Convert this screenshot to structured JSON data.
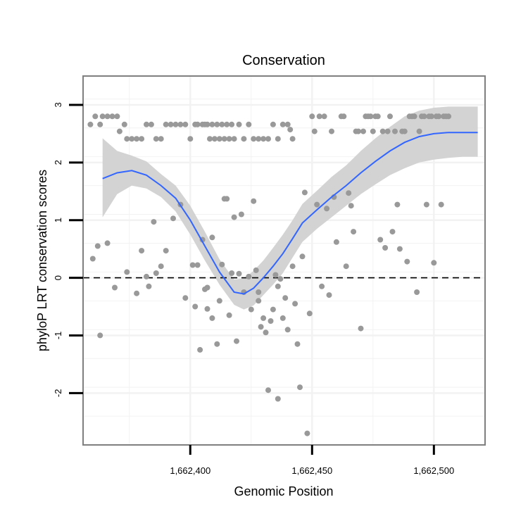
{
  "chart_data": {
    "type": "scatter",
    "title": "Conservation",
    "xlabel": "Genomic Position",
    "ylabel": "phyloP LRT conservation scores",
    "xlim": [
      1662356,
      1662521
    ],
    "ylim": [
      -2.9,
      3.5
    ],
    "x_ticks": [
      {
        "value": 1662400,
        "label": "1,662,400"
      },
      {
        "value": 1662450,
        "label": "1,662,450"
      },
      {
        "value": 1662500,
        "label": "1,662,500"
      }
    ],
    "y_ticks": [
      {
        "value": -2,
        "label": "-2"
      },
      {
        "value": -1,
        "label": "-1"
      },
      {
        "value": 0,
        "label": "0"
      },
      {
        "value": 1,
        "label": "1"
      },
      {
        "value": 2,
        "label": "2"
      },
      {
        "value": 3,
        "label": "3"
      }
    ],
    "grid": true,
    "reference_line": {
      "y": 0,
      "style": "dashed"
    },
    "colors": {
      "points": "#999999",
      "smooth_line": "#3366ff",
      "confidence_band": "#d3d3d3",
      "panel_border": "#7f7f7f",
      "grid": "#f2f2f2"
    },
    "points": [
      [
        1662363,
        2.66
      ],
      [
        1662364,
        2.8
      ],
      [
        1662366,
        2.8
      ],
      [
        1662368,
        2.8
      ],
      [
        1662370,
        2.8
      ],
      [
        1662371,
        2.54
      ],
      [
        1662373,
        2.66
      ],
      [
        1662374,
        2.41
      ],
      [
        1662376,
        2.41
      ],
      [
        1662378,
        2.41
      ],
      [
        1662380,
        2.41
      ],
      [
        1662382,
        2.66
      ],
      [
        1662384,
        2.66
      ],
      [
        1662386,
        2.41
      ],
      [
        1662388,
        2.41
      ],
      [
        1662390,
        2.66
      ],
      [
        1662392,
        2.66
      ],
      [
        1662394,
        2.66
      ],
      [
        1662396,
        2.66
      ],
      [
        1662398,
        2.66
      ],
      [
        1662400,
        2.41
      ],
      [
        1662402,
        2.66
      ],
      [
        1662403,
        2.66
      ],
      [
        1662405,
        2.66
      ],
      [
        1662407,
        2.66
      ],
      [
        1662409,
        2.66
      ],
      [
        1662411,
        2.66
      ],
      [
        1662413,
        2.66
      ],
      [
        1662415,
        2.66
      ],
      [
        1662417,
        2.66
      ],
      [
        1662418,
        2.41
      ],
      [
        1662420,
        2.66
      ],
      [
        1662422,
        2.41
      ],
      [
        1662424,
        2.66
      ],
      [
        1662426,
        2.41
      ],
      [
        1662428,
        2.41
      ],
      [
        1662430,
        2.41
      ],
      [
        1662432,
        2.41
      ],
      [
        1662434,
        2.66
      ],
      [
        1662436,
        2.41
      ],
      [
        1662438,
        2.66
      ],
      [
        1662440,
        2.66
      ],
      [
        1662442,
        2.41
      ],
      [
        1662406,
        2.66
      ],
      [
        1662408,
        2.41
      ],
      [
        1662410,
        2.41
      ],
      [
        1662412,
        2.41
      ],
      [
        1662414,
        2.41
      ],
      [
        1662416,
        2.41
      ],
      [
        1662359,
        2.66
      ],
      [
        1662361,
        2.8
      ],
      [
        1662362,
        0.55
      ],
      [
        1662360,
        0.33
      ],
      [
        1662363,
        -1.0
      ],
      [
        1662366,
        0.6
      ],
      [
        1662369,
        -0.17
      ],
      [
        1662374,
        0.1
      ],
      [
        1662378,
        -0.27
      ],
      [
        1662380,
        0.47
      ],
      [
        1662382,
        0.02
      ],
      [
        1662383,
        -0.15
      ],
      [
        1662385,
        0.97
      ],
      [
        1662386,
        0.08
      ],
      [
        1662388,
        0.2
      ],
      [
        1662390,
        0.47
      ],
      [
        1662393,
        1.03
      ],
      [
        1662396,
        1.27
      ],
      [
        1662398,
        -0.35
      ],
      [
        1662401,
        0.22
      ],
      [
        1662402,
        -0.5
      ],
      [
        1662403,
        0.22
      ],
      [
        1662404,
        -1.25
      ],
      [
        1662405,
        0.66
      ],
      [
        1662406,
        -0.2
      ],
      [
        1662407,
        -0.17
      ],
      [
        1662407,
        -0.54
      ],
      [
        1662409,
        0.7
      ],
      [
        1662409,
        -0.7
      ],
      [
        1662411,
        -1.15
      ],
      [
        1662412,
        -0.4
      ],
      [
        1662413,
        0.23
      ],
      [
        1662414,
        1.37
      ],
      [
        1662415,
        1.37
      ],
      [
        1662416,
        -0.65
      ],
      [
        1662417,
        0.08
      ],
      [
        1662418,
        1.05
      ],
      [
        1662419,
        -1.1
      ],
      [
        1662420,
        0.07
      ],
      [
        1662421,
        1.1
      ],
      [
        1662422,
        -0.25
      ],
      [
        1662424,
        0.02
      ],
      [
        1662425,
        -0.55
      ],
      [
        1662426,
        1.33
      ],
      [
        1662427,
        0.13
      ],
      [
        1662428,
        -0.4
      ],
      [
        1662428,
        -0.25
      ],
      [
        1662429,
        -0.85
      ],
      [
        1662430,
        -0.7
      ],
      [
        1662431,
        -0.95
      ],
      [
        1662432,
        -1.95
      ],
      [
        1662433,
        -0.75
      ],
      [
        1662434,
        -0.55
      ],
      [
        1662435,
        0.05
      ],
      [
        1662436,
        -2.1
      ],
      [
        1662436,
        -0.15
      ],
      [
        1662437,
        -0.02
      ],
      [
        1662438,
        -0.7
      ],
      [
        1662439,
        -0.35
      ],
      [
        1662440,
        -0.9
      ],
      [
        1662441,
        2.57
      ],
      [
        1662442,
        0.2
      ],
      [
        1662443,
        -0.45
      ],
      [
        1662444,
        -1.15
      ],
      [
        1662445,
        -1.9
      ],
      [
        1662446,
        0.37
      ],
      [
        1662447,
        1.48
      ],
      [
        1662448,
        -2.7
      ],
      [
        1662449,
        -0.62
      ],
      [
        1662450,
        2.8
      ],
      [
        1662451,
        2.54
      ],
      [
        1662452,
        1.27
      ],
      [
        1662453,
        2.8
      ],
      [
        1662454,
        -0.15
      ],
      [
        1662455,
        2.8
      ],
      [
        1662456,
        1.2
      ],
      [
        1662457,
        -0.3
      ],
      [
        1662458,
        2.54
      ],
      [
        1662459,
        1.4
      ],
      [
        1662460,
        0.62
      ],
      [
        1662462,
        2.8
      ],
      [
        1662463,
        2.8
      ],
      [
        1662464,
        0.2
      ],
      [
        1662465,
        1.47
      ],
      [
        1662466,
        1.25
      ],
      [
        1662467,
        0.8
      ],
      [
        1662468,
        2.54
      ],
      [
        1662469,
        2.54
      ],
      [
        1662470,
        -0.88
      ],
      [
        1662471,
        2.54
      ],
      [
        1662472,
        2.8
      ],
      [
        1662473,
        2.8
      ],
      [
        1662474,
        2.8
      ],
      [
        1662475,
        2.54
      ],
      [
        1662476,
        2.8
      ],
      [
        1662477,
        2.8
      ],
      [
        1662478,
        0.66
      ],
      [
        1662479,
        2.54
      ],
      [
        1662480,
        0.52
      ],
      [
        1662481,
        2.54
      ],
      [
        1662482,
        2.8
      ],
      [
        1662483,
        0.8
      ],
      [
        1662484,
        2.54
      ],
      [
        1662485,
        1.27
      ],
      [
        1662486,
        0.5
      ],
      [
        1662487,
        2.54
      ],
      [
        1662488,
        2.54
      ],
      [
        1662489,
        0.28
      ],
      [
        1662490,
        2.8
      ],
      [
        1662491,
        2.8
      ],
      [
        1662492,
        2.8
      ],
      [
        1662493,
        -0.25
      ],
      [
        1662494,
        2.54
      ],
      [
        1662495,
        2.8
      ],
      [
        1662496,
        2.8
      ],
      [
        1662497,
        1.27
      ],
      [
        1662498,
        2.8
      ],
      [
        1662499,
        2.8
      ],
      [
        1662500,
        0.26
      ],
      [
        1662501,
        2.8
      ],
      [
        1662502,
        2.8
      ],
      [
        1662503,
        1.27
      ],
      [
        1662504,
        2.8
      ],
      [
        1662505,
        2.8
      ],
      [
        1662506,
        2.8
      ]
    ],
    "smooth": {
      "x": [
        1662364,
        1662370,
        1662376,
        1662382,
        1662388,
        1662394,
        1662400,
        1662406,
        1662412,
        1662418,
        1662422,
        1662426,
        1662430,
        1662434,
        1662438,
        1662442,
        1662446,
        1662452,
        1662458,
        1662464,
        1662470,
        1662476,
        1662482,
        1662488,
        1662494,
        1662500,
        1662506,
        1662512,
        1662518
      ],
      "y": [
        1.72,
        1.82,
        1.86,
        1.78,
        1.6,
        1.38,
        1.0,
        0.55,
        0.1,
        -0.25,
        -0.28,
        -0.18,
        0.0,
        0.2,
        0.42,
        0.68,
        0.95,
        1.18,
        1.4,
        1.6,
        1.82,
        2.02,
        2.2,
        2.35,
        2.45,
        2.5,
        2.52,
        2.52,
        2.52
      ],
      "lower": [
        1.05,
        1.45,
        1.6,
        1.55,
        1.4,
        1.15,
        0.75,
        0.3,
        -0.12,
        -0.47,
        -0.55,
        -0.48,
        -0.3,
        -0.12,
        0.08,
        0.35,
        0.62,
        0.85,
        1.05,
        1.25,
        1.45,
        1.62,
        1.78,
        1.9,
        2.0,
        2.05,
        2.08,
        2.1,
        2.1
      ],
      "upper": [
        2.42,
        2.2,
        2.12,
        2.02,
        1.8,
        1.6,
        1.25,
        0.8,
        0.32,
        -0.03,
        -0.01,
        0.12,
        0.3,
        0.52,
        0.75,
        1.0,
        1.28,
        1.51,
        1.75,
        1.95,
        2.2,
        2.42,
        2.62,
        2.8,
        2.9,
        2.95,
        2.97,
        2.97,
        2.97
      ]
    }
  }
}
